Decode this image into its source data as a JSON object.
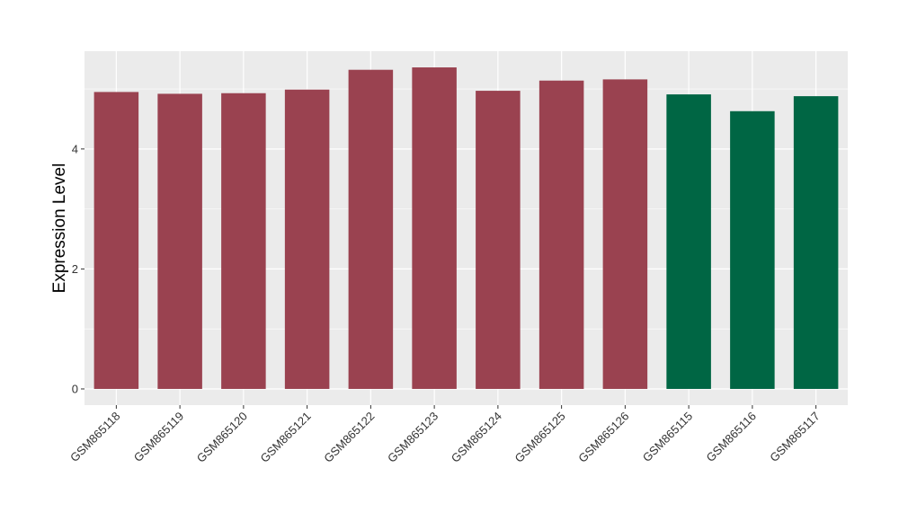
{
  "chart_data": {
    "type": "bar",
    "title": "",
    "xlabel": "",
    "ylabel": "Expression Level",
    "categories": [
      "GSM865118",
      "GSM865119",
      "GSM865120",
      "GSM865121",
      "GSM865122",
      "GSM865123",
      "GSM865124",
      "GSM865125",
      "GSM865126",
      "GSM865115",
      "GSM865116",
      "GSM865117"
    ],
    "values": [
      4.95,
      4.92,
      4.93,
      4.99,
      5.32,
      5.36,
      4.97,
      5.14,
      5.16,
      4.91,
      4.63,
      4.88
    ],
    "bar_colors": [
      "#9a4250",
      "#9a4250",
      "#9a4250",
      "#9a4250",
      "#9a4250",
      "#9a4250",
      "#9a4250",
      "#9a4250",
      "#9a4250",
      "#006644",
      "#006644",
      "#006644"
    ],
    "y_ticks": [
      0,
      2,
      4
    ],
    "ylim": [
      -0.27,
      5.63
    ],
    "grid": true,
    "panel_background": "#ebebeb",
    "grid_color": "#ffffff"
  }
}
